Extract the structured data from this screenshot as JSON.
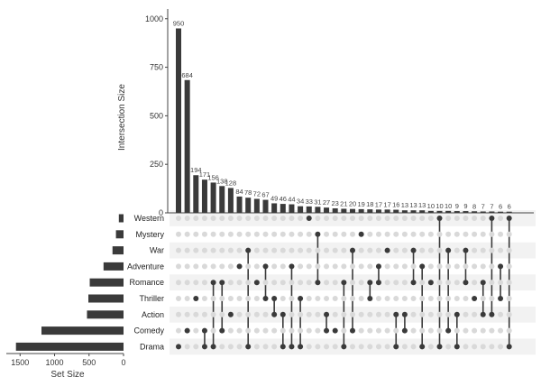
{
  "chart_data": {
    "type": "bar",
    "title": "",
    "intersection_axis_label": "Intersection Size",
    "set_size_axis_label": "Set Size",
    "intersection_ylim": [
      0,
      1050
    ],
    "intersection_ticks": [
      0,
      250,
      500,
      750,
      1000
    ],
    "set_size_xlim": [
      0,
      1700
    ],
    "set_size_ticks": [
      1500,
      1000,
      500,
      0
    ],
    "sets": [
      "Western",
      "Mystery",
      "War",
      "Adventure",
      "Romance",
      "Thriller",
      "Action",
      "Comedy",
      "Drama"
    ],
    "set_sizes": [
      68,
      110,
      160,
      290,
      490,
      510,
      530,
      1190,
      1560
    ],
    "intersections": [
      {
        "size": 950,
        "members": [
          "Drama"
        ]
      },
      {
        "size": 684,
        "members": [
          "Comedy"
        ]
      },
      {
        "size": 194,
        "members": [
          "Thriller"
        ]
      },
      {
        "size": 171,
        "members": [
          "Comedy",
          "Drama"
        ]
      },
      {
        "size": 156,
        "members": [
          "Drama",
          "Romance"
        ]
      },
      {
        "size": 138,
        "members": [
          "Comedy",
          "Romance"
        ]
      },
      {
        "size": 128,
        "members": [
          "Action"
        ]
      },
      {
        "size": 84,
        "members": [
          "Adventure"
        ]
      },
      {
        "size": 78,
        "members": [
          "Drama",
          "War"
        ]
      },
      {
        "size": 72,
        "members": [
          "Romance"
        ]
      },
      {
        "size": 67,
        "members": [
          "Thriller",
          "Adventure"
        ]
      },
      {
        "size": 49,
        "members": [
          "Action",
          "Thriller"
        ]
      },
      {
        "size": 46,
        "members": [
          "Drama",
          "Action"
        ]
      },
      {
        "size": 44,
        "members": [
          "Drama",
          "Adventure"
        ]
      },
      {
        "size": 34,
        "members": [
          "Drama",
          "Thriller"
        ]
      },
      {
        "size": 33,
        "members": [
          "Western"
        ]
      },
      {
        "size": 31,
        "members": [
          "Romance",
          "Mystery"
        ]
      },
      {
        "size": 27,
        "members": [
          "Comedy",
          "Action"
        ]
      },
      {
        "size": 23,
        "members": [
          "Comedy"
        ]
      },
      {
        "size": 21,
        "members": [
          "Drama",
          "Romance"
        ]
      },
      {
        "size": 20,
        "members": [
          "Comedy",
          "War"
        ]
      },
      {
        "size": 19,
        "members": [
          "Mystery"
        ]
      },
      {
        "size": 18,
        "members": [
          "Romance",
          "Thriller"
        ]
      },
      {
        "size": 17,
        "members": [
          "Adventure",
          "Romance"
        ]
      },
      {
        "size": 17,
        "members": [
          "War"
        ]
      },
      {
        "size": 16,
        "members": [
          "Action",
          "Drama"
        ]
      },
      {
        "size": 13,
        "members": [
          "Action",
          "Comedy"
        ]
      },
      {
        "size": 13,
        "members": [
          "War",
          "Romance"
        ]
      },
      {
        "size": 13,
        "members": [
          "Adventure",
          "Drama"
        ]
      },
      {
        "size": 10,
        "members": [
          "Romance"
        ]
      },
      {
        "size": 10,
        "members": [
          "Western",
          "Drama"
        ]
      },
      {
        "size": 10,
        "members": [
          "War",
          "Comedy"
        ]
      },
      {
        "size": 9,
        "members": [
          "Action",
          "Drama"
        ]
      },
      {
        "size": 9,
        "members": [
          "War",
          "Romance"
        ]
      },
      {
        "size": 8,
        "members": [
          "Thriller"
        ]
      },
      {
        "size": 7,
        "members": [
          "Romance",
          "Action"
        ]
      },
      {
        "size": 7,
        "members": [
          "Western",
          "Action"
        ]
      },
      {
        "size": 6,
        "members": [
          "Adventure",
          "Thriller"
        ]
      },
      {
        "size": 6,
        "members": [
          "Western",
          "Drama"
        ]
      }
    ]
  }
}
